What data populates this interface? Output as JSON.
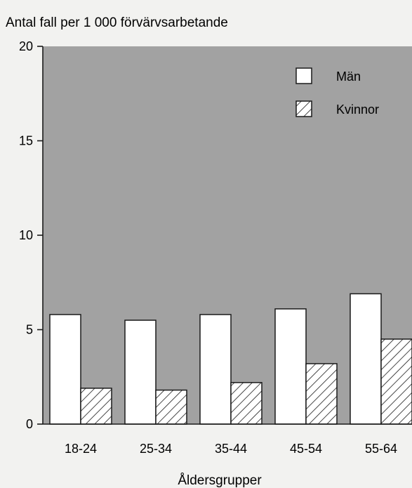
{
  "chart_data": {
    "type": "bar",
    "title": "Antal fall per 1 000 förvärvsarbetande",
    "xlabel": "Åldersgrupper",
    "ylabel": "",
    "ylim": [
      0,
      20
    ],
    "yticks": [
      0,
      5,
      10,
      15,
      20
    ],
    "grid": false,
    "legend_position": "top-right",
    "categories": [
      "18-24",
      "25-34",
      "35-44",
      "45-54",
      "55-64"
    ],
    "series": [
      {
        "name": "Män",
        "values": [
          5.8,
          5.5,
          5.8,
          6.1,
          6.9
        ],
        "fill": "#ffffff",
        "pattern": "solid"
      },
      {
        "name": "Kvinnor",
        "values": [
          1.9,
          1.8,
          2.2,
          3.2,
          4.5
        ],
        "fill": "#ffffff",
        "pattern": "hatched"
      }
    ],
    "colors": {
      "plot_background": "#a2a2a2",
      "page_background": "#f2f2f0",
      "bar_stroke": "#1a1a1a"
    }
  }
}
